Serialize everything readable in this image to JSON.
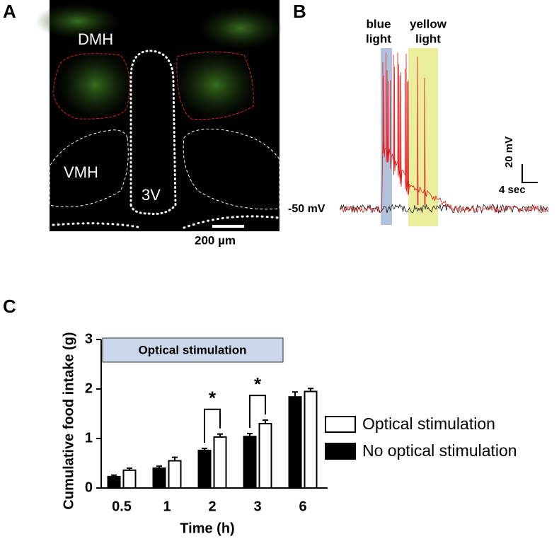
{
  "panel_labels": [
    "A",
    "B",
    "C"
  ],
  "panel_a": {
    "regions": [
      "DMH",
      "VMH",
      "3V"
    ],
    "scale_bar": "200 µm"
  },
  "panel_b": {
    "blue_light": [
      "blue",
      "light"
    ],
    "yellow_light": [
      "yellow",
      "light"
    ],
    "resting": "-50 mV",
    "scale_y": "20 mV",
    "scale_x": "4 sec"
  },
  "chart_data": {
    "type": "bar",
    "title": "Optical stimulation",
    "x_label": "Time (h)",
    "y_label": "Cumulative food intake (g)",
    "categories": [
      "0.5",
      "1",
      "2",
      "3",
      "6"
    ],
    "series": [
      {
        "name": "Optical stimulation",
        "color": "#ffffff",
        "values": [
          0.36,
          0.55,
          1.03,
          1.3,
          1.95
        ],
        "errors": [
          0.04,
          0.07,
          0.06,
          0.07,
          0.06
        ]
      },
      {
        "name": "No optical stimulation",
        "color": "#000000",
        "values": [
          0.23,
          0.4,
          0.76,
          1.04,
          1.84
        ],
        "errors": [
          0.03,
          0.04,
          0.04,
          0.06,
          0.1
        ]
      }
    ],
    "annotations": [
      "*",
      "*"
    ],
    "ylim": [
      0,
      3
    ],
    "yticks": [
      0,
      1,
      2,
      3
    ],
    "grid": false
  }
}
